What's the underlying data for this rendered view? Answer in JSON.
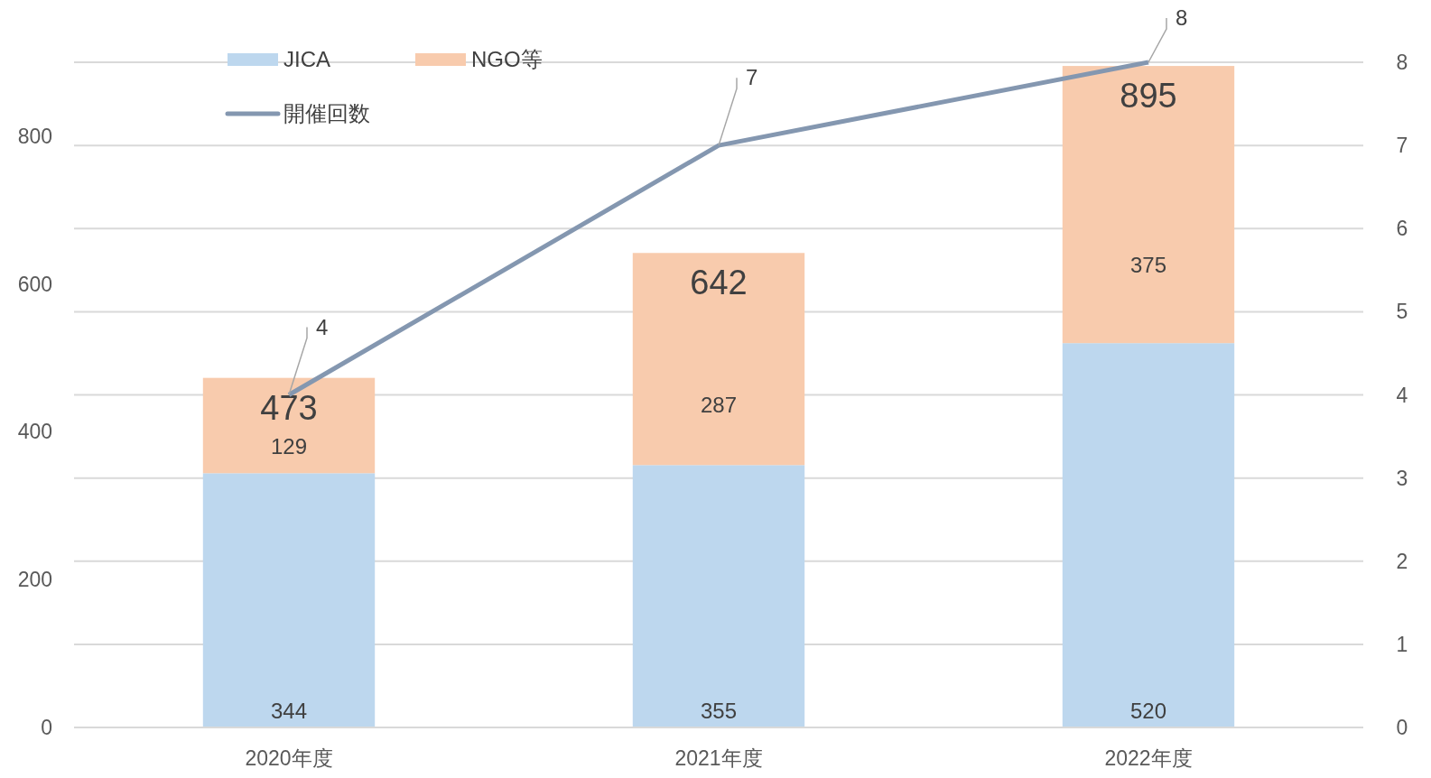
{
  "chart_data": {
    "type": "bar",
    "stacked": true,
    "categories": [
      "2020年度",
      "2021年度",
      "2022年度"
    ],
    "series": [
      {
        "name": "JICA",
        "color": "#bdd7ee",
        "values": [
          344,
          355,
          520
        ]
      },
      {
        "name": "NGO等",
        "color": "#f8cbad",
        "values": [
          129,
          287,
          375
        ]
      },
      {
        "name": "開催回数",
        "type": "line",
        "axis": "y2",
        "color": "#8497b0",
        "values": [
          4,
          7,
          8
        ]
      }
    ],
    "ylim": [
      0,
      900
    ],
    "yticks": [
      0,
      200,
      400,
      600,
      800
    ],
    "y2lim": [
      0,
      8
    ],
    "y2ticks": [
      0,
      1,
      2,
      3,
      4,
      5,
      6,
      7,
      8
    ],
    "grid": "y2",
    "legend": "top left",
    "data_labels": true,
    "totals": [
      "473",
      "642",
      "895"
    ]
  }
}
